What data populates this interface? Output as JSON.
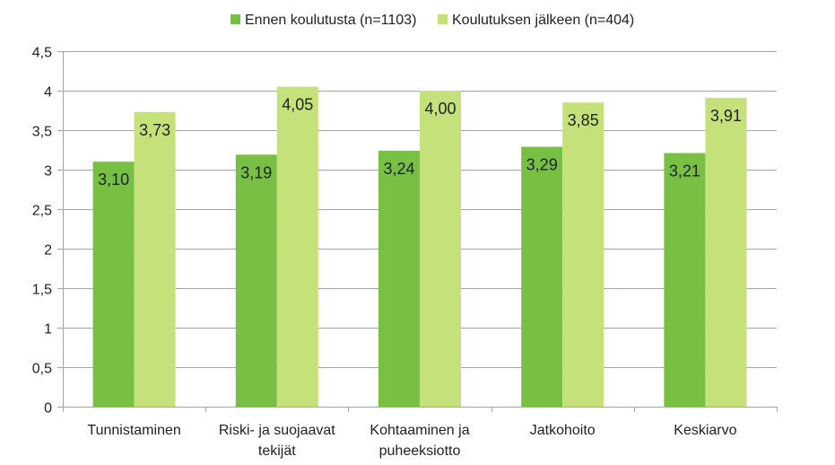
{
  "chart_data": {
    "type": "bar",
    "categories": [
      [
        "Tunnistaminen"
      ],
      [
        "Riski- ja suojaavat",
        "tekijät"
      ],
      [
        "Kohtaaminen ja",
        "puheeksiotto"
      ],
      [
        "Jatkohoito"
      ],
      [
        "Keskiarvo"
      ]
    ],
    "series": [
      {
        "name": "Ennen koulutusta (n=1103)",
        "values": [
          3.1,
          3.19,
          3.24,
          3.29,
          3.21
        ],
        "labels": [
          "3,10",
          "3,19",
          "3,24",
          "3,29",
          "3,21"
        ],
        "color": "#77c043"
      },
      {
        "name": "Koulutuksen jälkeen (n=404)",
        "values": [
          3.73,
          4.05,
          4.0,
          3.85,
          3.91
        ],
        "labels": [
          "3,73",
          "4,05",
          "4,00",
          "3,85",
          "3,91"
        ],
        "color": "#c5e27a"
      }
    ],
    "ylim": [
      0,
      4.5
    ],
    "yticks": [
      0,
      0.5,
      1,
      1.5,
      2,
      2.5,
      3,
      3.5,
      4,
      4.5
    ],
    "ytick_labels": [
      "0",
      "0,5",
      "1",
      "1,5",
      "2",
      "2,5",
      "3",
      "3,5",
      "4",
      "4,5"
    ],
    "grid": true,
    "legend_position": "top",
    "title": "",
    "xlabel": "",
    "ylabel": ""
  }
}
